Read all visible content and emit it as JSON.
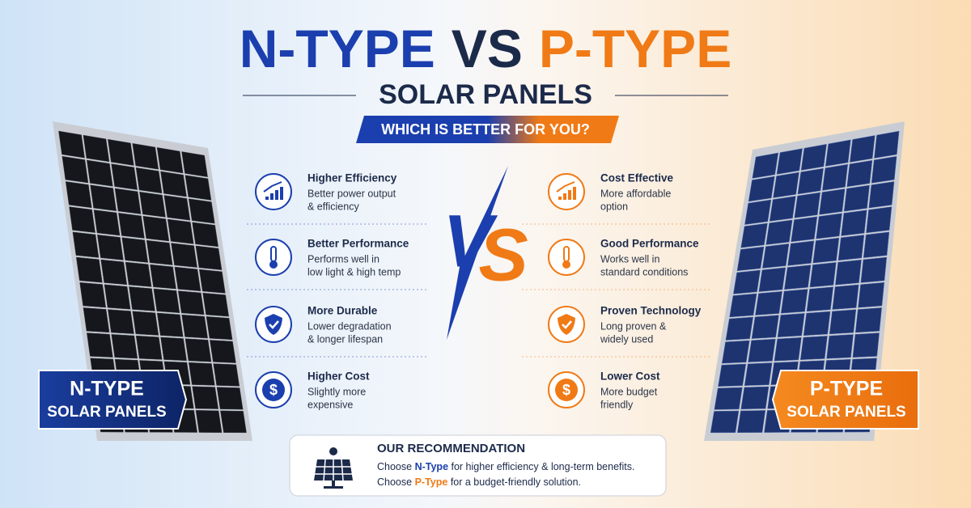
{
  "header": {
    "title_left": "N-TYPE",
    "title_vs": "VS",
    "title_right": "P-TYPE",
    "subtitle": "SOLAR PANELS",
    "tagline": "WHICH IS BETTER FOR YOU?"
  },
  "vs": {
    "v": "V",
    "s": "S"
  },
  "left": {
    "label": "N-TYPE",
    "sublabel": "SOLAR PANELS",
    "features": [
      {
        "title": "Higher Efficiency",
        "lines": [
          "Better power output",
          "& efficiency"
        ]
      },
      {
        "title": "Better Performance",
        "lines": [
          "Performs well in",
          "low light & high temp"
        ]
      },
      {
        "title": "More Durable",
        "lines": [
          "Lower degradation",
          "& longer lifespan"
        ]
      },
      {
        "title": "Higher Cost",
        "lines": [
          "Slightly more",
          "expensive"
        ]
      }
    ]
  },
  "right": {
    "label": "P-TYPE",
    "sublabel": "SOLAR PANELS",
    "features": [
      {
        "title": "Cost Effective",
        "lines": [
          "More affordable",
          "option"
        ]
      },
      {
        "title": "Good Performance",
        "lines": [
          "Works well in",
          "standard conditions"
        ]
      },
      {
        "title": "Proven Technology",
        "lines": [
          "Long proven &",
          "widely used"
        ]
      },
      {
        "title": "Lower Cost",
        "lines": [
          "More budget",
          "friendly"
        ]
      }
    ]
  },
  "recommendation": {
    "title": "OUR RECOMMENDATION",
    "lines": [
      [
        "Choose",
        "N-Type",
        "for higher efficiency & long-term benefits."
      ],
      [
        "Choose",
        "P-Type",
        "for a budget-friendly solution."
      ]
    ]
  }
}
